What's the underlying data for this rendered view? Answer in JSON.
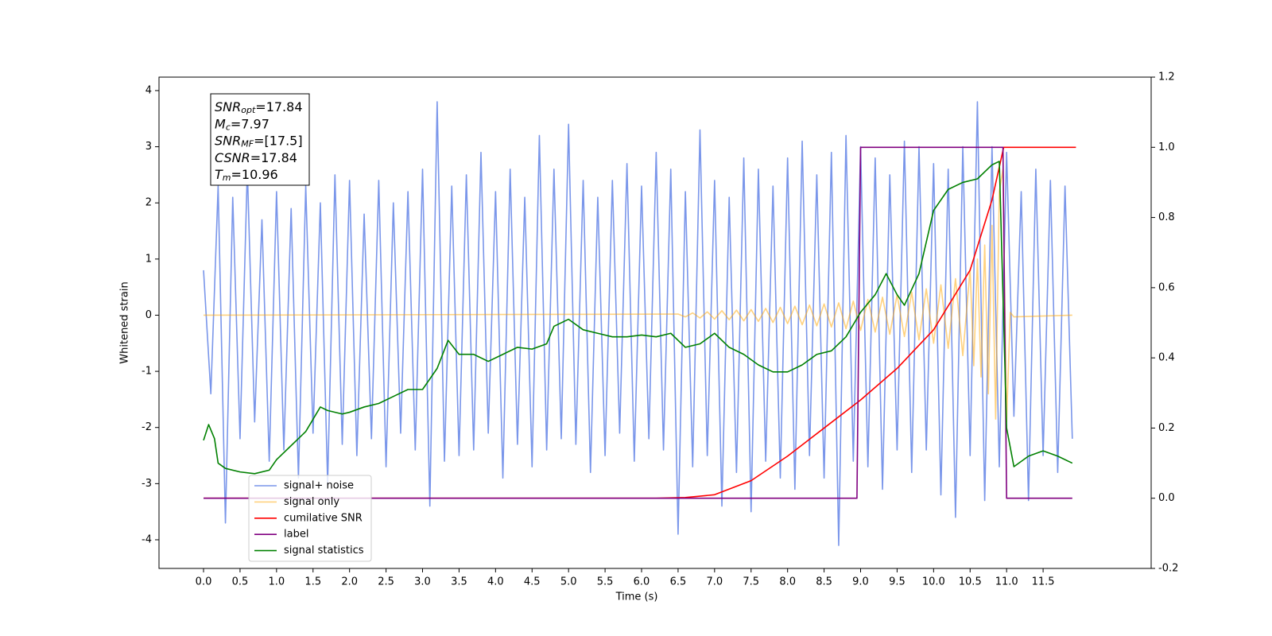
{
  "chart_data": {
    "type": "line",
    "xlabel": "Time (s)",
    "ylabel": "Whitened strain",
    "xlim": [
      -0.61,
      12.98
    ],
    "ylim": [
      -4.51,
      4.24
    ],
    "y2lim": [
      -0.2,
      1.2
    ],
    "xticks": [
      {
        "value": 0,
        "label": "0.0"
      },
      {
        "value": 0.5,
        "label": "0.5"
      },
      {
        "value": 1,
        "label": "1.0"
      },
      {
        "value": 1.5,
        "label": "1.5"
      },
      {
        "value": 2,
        "label": "2.0"
      },
      {
        "value": 2.5,
        "label": "2.5"
      },
      {
        "value": 3,
        "label": "3.0"
      },
      {
        "value": 3.5,
        "label": "3.5"
      },
      {
        "value": 4,
        "label": "4.0"
      },
      {
        "value": 4.5,
        "label": "4.5"
      },
      {
        "value": 5,
        "label": "5.0"
      },
      {
        "value": 5.5,
        "label": "5.5"
      },
      {
        "value": 6,
        "label": "6.0"
      },
      {
        "value": 6.5,
        "label": "6.5"
      },
      {
        "value": 7,
        "label": "7.0"
      },
      {
        "value": 7.5,
        "label": "7.5"
      },
      {
        "value": 8,
        "label": "8.0"
      },
      {
        "value": 8.5,
        "label": "8.5"
      },
      {
        "value": 9,
        "label": "9.0"
      },
      {
        "value": 9.5,
        "label": "9.5"
      },
      {
        "value": 10,
        "label": "10.0"
      },
      {
        "value": 10.5,
        "label": "10.5"
      },
      {
        "value": 11,
        "label": "11.0"
      },
      {
        "value": 11.5,
        "label": "11.5"
      }
    ],
    "yticks": [
      -4,
      -3,
      -2,
      -1,
      0,
      1,
      2,
      3,
      4
    ],
    "y2ticks": [
      -0.2,
      {
        "value": 0,
        "label": "0.0"
      },
      0.2,
      0.4,
      0.6,
      0.8,
      {
        "value": 1,
        "label": "1.0"
      },
      1.2
    ],
    "legend": "lower left",
    "annotations": [
      {
        "base": "SNR",
        "sub": "opt",
        "text": "=17.84"
      },
      {
        "base": "M",
        "sub": "c",
        "text": "=7.97"
      },
      {
        "base": "SNR",
        "sub": "MF",
        "text": "=[17.5]"
      },
      {
        "base": "CSNR",
        "text": "=17.84"
      },
      {
        "base": "T",
        "sub": "m",
        "text": "=10.96"
      }
    ],
    "series": [
      {
        "name": "signal+ noise",
        "color": "royalblue",
        "alpha": 0.7,
        "x": [
          0,
          0.1,
          0.2,
          0.3,
          0.4,
          0.5,
          0.6,
          0.7,
          0.8,
          0.9,
          1,
          1.1,
          1.2,
          1.3,
          1.4,
          1.5,
          1.6,
          1.7,
          1.8,
          1.9,
          2,
          2.1,
          2.2,
          2.3,
          2.4,
          2.5,
          2.6,
          2.7,
          2.8,
          2.9,
          3,
          3.1,
          3.2,
          3.3,
          3.4,
          3.5,
          3.6,
          3.7,
          3.8,
          3.9,
          4,
          4.1,
          4.2,
          4.3,
          4.4,
          4.5,
          4.6,
          4.7,
          4.8,
          4.9,
          5,
          5.1,
          5.2,
          5.3,
          5.4,
          5.5,
          5.6,
          5.7,
          5.8,
          5.9,
          6,
          6.1,
          6.2,
          6.3,
          6.4,
          6.5,
          6.6,
          6.7,
          6.8,
          6.9,
          7,
          7.1,
          7.2,
          7.3,
          7.4,
          7.5,
          7.6,
          7.7,
          7.8,
          7.9,
          8,
          8.1,
          8.2,
          8.3,
          8.4,
          8.5,
          8.6,
          8.7,
          8.8,
          8.9,
          9,
          9.1,
          9.2,
          9.3,
          9.4,
          9.5,
          9.6,
          9.7,
          9.8,
          9.9,
          10,
          10.1,
          10.2,
          10.3,
          10.4,
          10.5,
          10.6,
          10.7,
          10.8,
          10.9,
          11,
          11.1,
          11.2,
          11.3,
          11.4,
          11.5,
          11.6,
          11.7,
          11.8,
          11.9
        ],
        "values": [
          0.8,
          -1.4,
          2.3,
          -3.7,
          2.1,
          -2.2,
          2.6,
          -1.9,
          1.7,
          -2.6,
          2.2,
          -2.4,
          1.9,
          -2.9,
          2.3,
          -2.1,
          2.0,
          -3.0,
          2.5,
          -2.3,
          2.4,
          -2.5,
          1.8,
          -2.2,
          2.4,
          -2.7,
          2.0,
          -2.1,
          2.2,
          -2.4,
          2.6,
          -3.4,
          3.8,
          -2.6,
          2.3,
          -2.5,
          2.5,
          -2.4,
          2.9,
          -2.1,
          2.2,
          -2.9,
          2.6,
          -2.3,
          2.1,
          -2.7,
          3.2,
          -2.4,
          2.6,
          -2.2,
          3.4,
          -2.3,
          2.4,
          -2.8,
          2.1,
          -2.5,
          2.4,
          -2.1,
          2.7,
          -2.6,
          2.3,
          -2.2,
          2.9,
          -2.4,
          2.6,
          -3.9,
          2.2,
          -2.7,
          3.3,
          -2.5,
          2.4,
          -3.4,
          2.1,
          -2.8,
          2.8,
          -3.5,
          2.6,
          -2.6,
          2.3,
          -2.9,
          2.8,
          -3.1,
          3.1,
          -2.5,
          2.5,
          -2.9,
          2.9,
          -4.1,
          3.2,
          -2.6,
          3.0,
          -2.7,
          2.8,
          -3.1,
          2.5,
          -2.4,
          3.1,
          -2.8,
          3.0,
          -2.4,
          2.7,
          -3.2,
          2.6,
          -3.6,
          3.0,
          -2.5,
          3.8,
          -3.3,
          3.0,
          -2.7,
          2.9,
          -1.8,
          2.2,
          -3.3,
          2.6,
          -2.5,
          2.4,
          -2.8,
          2.3,
          -2.2
        ]
      },
      {
        "name": "signal only",
        "color": "orange",
        "alpha": 0.5,
        "x": [
          0,
          6.5,
          6.6,
          6.7,
          6.8,
          6.9,
          7,
          7.1,
          7.2,
          7.3,
          7.4,
          7.5,
          7.6,
          7.7,
          7.8,
          7.9,
          8,
          8.1,
          8.2,
          8.3,
          8.4,
          8.5,
          8.6,
          8.7,
          8.8,
          8.9,
          9,
          9.1,
          9.2,
          9.3,
          9.4,
          9.5,
          9.6,
          9.7,
          9.8,
          9.9,
          10,
          10.1,
          10.2,
          10.3,
          10.4,
          10.5,
          10.55,
          10.6,
          10.65,
          10.7,
          10.75,
          10.8,
          10.85,
          10.9,
          10.95,
          11,
          11.05,
          11.1,
          11.9
        ],
        "values": [
          0,
          0.02,
          -0.03,
          0.04,
          -0.05,
          0.06,
          -0.07,
          0.08,
          -0.08,
          0.09,
          -0.1,
          0.1,
          -0.11,
          0.12,
          -0.13,
          0.14,
          -0.15,
          0.16,
          -0.17,
          0.18,
          -0.19,
          0.2,
          -0.21,
          0.22,
          -0.24,
          0.25,
          -0.27,
          0.28,
          -0.3,
          0.32,
          -0.34,
          0.36,
          -0.38,
          0.41,
          -0.44,
          0.47,
          -0.5,
          0.54,
          -0.59,
          0.65,
          -0.72,
          0.82,
          -0.9,
          1.0,
          -1.1,
          1.25,
          -1.4,
          1.6,
          -1.85,
          2.2,
          2.6,
          -1.9,
          0.05,
          -0.03,
          0
        ]
      },
      {
        "name": "cumilative SNR",
        "color": "red",
        "alpha": 1,
        "axis": "y2",
        "x": [
          0,
          6.2,
          6.6,
          7,
          7.5,
          8,
          8.5,
          9,
          9.5,
          10,
          10.5,
          10.8,
          10.96,
          11.95
        ],
        "values": [
          0,
          0,
          0.002,
          0.01,
          0.05,
          0.12,
          0.2,
          0.28,
          0.37,
          0.48,
          0.65,
          0.85,
          1.0,
          1.0
        ]
      },
      {
        "name": "label",
        "color": "purple",
        "alpha": 1,
        "axis": "y2",
        "x": [
          0,
          8.95,
          9,
          10.95,
          11,
          11.9
        ],
        "values": [
          0,
          0,
          1,
          1,
          0,
          0
        ]
      },
      {
        "name": "signal statistics",
        "color": "green",
        "alpha": 1,
        "axis": "y2",
        "x": [
          0,
          0.07,
          0.15,
          0.2,
          0.3,
          0.5,
          0.7,
          0.9,
          1,
          1.2,
          1.4,
          1.6,
          1.7,
          1.9,
          2,
          2.2,
          2.4,
          2.6,
          2.8,
          3,
          3.2,
          3.35,
          3.5,
          3.7,
          3.9,
          4.1,
          4.3,
          4.5,
          4.7,
          4.8,
          5,
          5.2,
          5.4,
          5.6,
          5.8,
          6,
          6.2,
          6.4,
          6.6,
          6.8,
          7,
          7.2,
          7.4,
          7.6,
          7.8,
          8,
          8.2,
          8.4,
          8.6,
          8.8,
          9,
          9.2,
          9.35,
          9.5,
          9.6,
          9.8,
          10,
          10.2,
          10.4,
          10.6,
          10.8,
          10.9,
          11,
          11.1,
          11.3,
          11.5,
          11.7,
          11.9
        ],
        "values": [
          0.165,
          0.21,
          0.17,
          0.1,
          0.085,
          0.075,
          0.07,
          0.08,
          0.11,
          0.15,
          0.19,
          0.26,
          0.25,
          0.24,
          0.245,
          0.26,
          0.27,
          0.29,
          0.31,
          0.31,
          0.37,
          0.45,
          0.41,
          0.41,
          0.39,
          0.41,
          0.43,
          0.425,
          0.44,
          0.49,
          0.51,
          0.48,
          0.47,
          0.46,
          0.46,
          0.465,
          0.46,
          0.47,
          0.43,
          0.44,
          0.47,
          0.43,
          0.41,
          0.38,
          0.36,
          0.36,
          0.38,
          0.41,
          0.42,
          0.46,
          0.53,
          0.58,
          0.64,
          0.58,
          0.55,
          0.64,
          0.82,
          0.88,
          0.9,
          0.91,
          0.95,
          0.96,
          0.2,
          0.09,
          0.12,
          0.135,
          0.12,
          0.1
        ]
      }
    ]
  }
}
